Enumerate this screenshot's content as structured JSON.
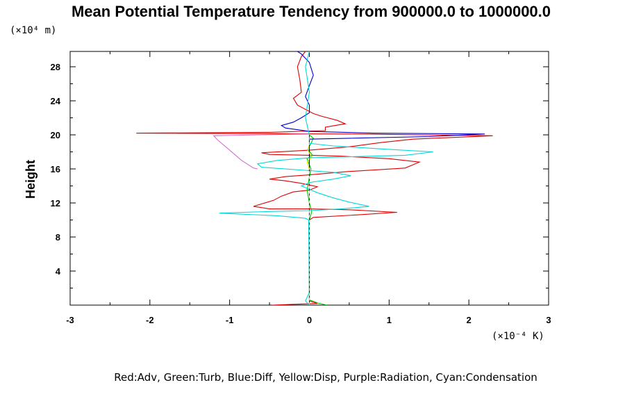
{
  "chart_data": {
    "type": "line",
    "title": "Mean Potential Temperature Tendency from 900000.0 to 1000000.0",
    "x_unit_label": "(×10⁻⁴ K)",
    "y_unit_label": "(×10⁴ m)",
    "ylabel": "Height",
    "xlabel": "",
    "xlim": [
      -3,
      3
    ],
    "ylim": [
      0,
      29.8
    ],
    "x_scale": "x 1e-4 K",
    "y_scale": "x 1e4 m",
    "x_ticks": [
      -3,
      -2,
      -1,
      0,
      1,
      2,
      3
    ],
    "x_tick_labels": [
      "-3",
      "-2",
      "-1",
      "0",
      "1",
      "2",
      "3"
    ],
    "y_ticks": [
      4,
      8,
      12,
      16,
      20,
      24,
      28
    ],
    "y_tick_labels": [
      "4",
      "8",
      "12",
      "16",
      "20",
      "24",
      "28"
    ],
    "legend_text": "Red:Adv, Green:Turb, Blue:Diff, Yellow:Disp, Purple:Radiation, Cyan:Condensation",
    "series": [
      {
        "name": "Adv",
        "color": "#dd0000",
        "points": [
          [
            -0.47,
            0.0
          ],
          [
            0.1,
            0.2
          ],
          [
            0.0,
            0.5
          ],
          [
            0.0,
            10.0
          ],
          [
            0.05,
            10.3
          ],
          [
            0.6,
            10.6
          ],
          [
            1.1,
            10.9
          ],
          [
            0.5,
            11.2
          ],
          [
            0.0,
            11.3
          ],
          [
            -0.5,
            11.3
          ],
          [
            -0.7,
            11.6
          ],
          [
            -0.45,
            12.3
          ],
          [
            -0.35,
            12.8
          ],
          [
            -0.2,
            13.3
          ],
          [
            0.0,
            13.5
          ],
          [
            0.1,
            13.9
          ],
          [
            -0.1,
            14.3
          ],
          [
            -0.3,
            14.6
          ],
          [
            -0.5,
            14.8
          ],
          [
            -0.3,
            15.1
          ],
          [
            0.0,
            15.3
          ],
          [
            0.5,
            15.7
          ],
          [
            1.2,
            16.1
          ],
          [
            1.38,
            16.8
          ],
          [
            1.0,
            17.2
          ],
          [
            0.4,
            17.5
          ],
          [
            0.0,
            17.6
          ],
          [
            -0.5,
            17.7
          ],
          [
            -0.6,
            17.9
          ],
          [
            0.0,
            18.2
          ],
          [
            0.5,
            18.6
          ],
          [
            0.9,
            19.1
          ],
          [
            1.3,
            19.5
          ],
          [
            2.3,
            19.9
          ],
          [
            1.4,
            20.0
          ],
          [
            0.5,
            20.1
          ],
          [
            -2.17,
            20.2
          ],
          [
            -0.5,
            20.3
          ],
          [
            0.2,
            20.5
          ],
          [
            0.2,
            20.9
          ],
          [
            0.45,
            21.3
          ],
          [
            0.35,
            21.7
          ],
          [
            0.15,
            22.2
          ],
          [
            0.05,
            22.5
          ],
          [
            -0.15,
            23.5
          ],
          [
            -0.2,
            24.3
          ],
          [
            -0.1,
            25.0
          ],
          [
            -0.12,
            26.5
          ],
          [
            -0.15,
            28.0
          ],
          [
            -0.1,
            29.2
          ],
          [
            -0.05,
            29.8
          ]
        ]
      },
      {
        "name": "Turb",
        "color": "#00c800",
        "points": [
          [
            0.22,
            0.0
          ],
          [
            0.1,
            0.25
          ],
          [
            0.05,
            0.45
          ],
          [
            0.0,
            0.6
          ],
          [
            0.0,
            10.0
          ],
          [
            0.03,
            11.0
          ],
          [
            0.0,
            12.0
          ],
          [
            -0.03,
            13.5
          ],
          [
            0.0,
            15.0
          ],
          [
            0.02,
            16.0
          ],
          [
            -0.03,
            17.2
          ],
          [
            0.04,
            17.6
          ],
          [
            -0.02,
            18.3
          ],
          [
            0.02,
            19.0
          ],
          [
            0.05,
            19.6
          ],
          [
            0.0,
            20.0
          ]
        ]
      },
      {
        "name": "Diff",
        "color": "#0000cc",
        "points": [
          [
            0.0,
            0.0
          ],
          [
            0.0,
            19.5
          ],
          [
            1.5,
            19.8
          ],
          [
            2.2,
            20.1
          ],
          [
            0.8,
            20.2
          ],
          [
            0.0,
            20.4
          ],
          [
            -0.3,
            20.8
          ],
          [
            -0.35,
            21.1
          ],
          [
            -0.2,
            21.5
          ],
          [
            -0.1,
            22.0
          ],
          [
            0.0,
            22.6
          ],
          [
            0.0,
            23.5
          ],
          [
            -0.05,
            24.5
          ],
          [
            0.0,
            25.8
          ],
          [
            0.05,
            27.0
          ],
          [
            0.0,
            28.5
          ],
          [
            -0.1,
            29.5
          ],
          [
            -0.15,
            29.8
          ]
        ]
      },
      {
        "name": "Disp",
        "color": "#e6e600",
        "points": [
          [
            0.0,
            0.0
          ],
          [
            0.0,
            16.0
          ],
          [
            -0.03,
            16.8
          ],
          [
            0.03,
            17.4
          ],
          [
            -0.02,
            18.2
          ],
          [
            0.0,
            18.8
          ],
          [
            0.0,
            20.0
          ]
        ]
      },
      {
        "name": "Radiation",
        "color": "#d070d0",
        "points": [
          [
            -0.65,
            16.0
          ],
          [
            -0.7,
            16.1
          ],
          [
            -0.85,
            17.0
          ],
          [
            -1.0,
            18.2
          ],
          [
            -1.15,
            19.4
          ],
          [
            -1.2,
            19.9
          ],
          [
            -0.6,
            20.0
          ],
          [
            0.0,
            20.1
          ]
        ]
      },
      {
        "name": "Condensation",
        "color": "#00d8d8",
        "points": [
          [
            0.0,
            0.0
          ],
          [
            -0.05,
            0.5
          ],
          [
            0.0,
            1.5
          ],
          [
            -0.01,
            10.0
          ],
          [
            -0.05,
            10.2
          ],
          [
            -0.4,
            10.5
          ],
          [
            -1.13,
            10.8
          ],
          [
            -0.5,
            11.0
          ],
          [
            0.0,
            11.1
          ],
          [
            0.4,
            11.3
          ],
          [
            0.75,
            11.6
          ],
          [
            0.5,
            12.1
          ],
          [
            0.3,
            12.6
          ],
          [
            0.1,
            13.2
          ],
          [
            0.0,
            13.6
          ],
          [
            -0.1,
            14.0
          ],
          [
            0.0,
            14.4
          ],
          [
            0.3,
            14.8
          ],
          [
            0.52,
            15.2
          ],
          [
            0.3,
            15.6
          ],
          [
            0.0,
            15.8
          ],
          [
            -0.6,
            16.2
          ],
          [
            -0.65,
            16.6
          ],
          [
            -0.4,
            17.0
          ],
          [
            0.0,
            17.3
          ],
          [
            1.2,
            17.6
          ],
          [
            1.55,
            18.0
          ],
          [
            1.0,
            18.3
          ],
          [
            0.3,
            18.7
          ],
          [
            0.0,
            19.0
          ],
          [
            0.0,
            20.0
          ],
          [
            -0.05,
            22.0
          ],
          [
            0.0,
            25.0
          ],
          [
            -0.05,
            28.0
          ],
          [
            0.0,
            29.8
          ]
        ]
      }
    ]
  }
}
